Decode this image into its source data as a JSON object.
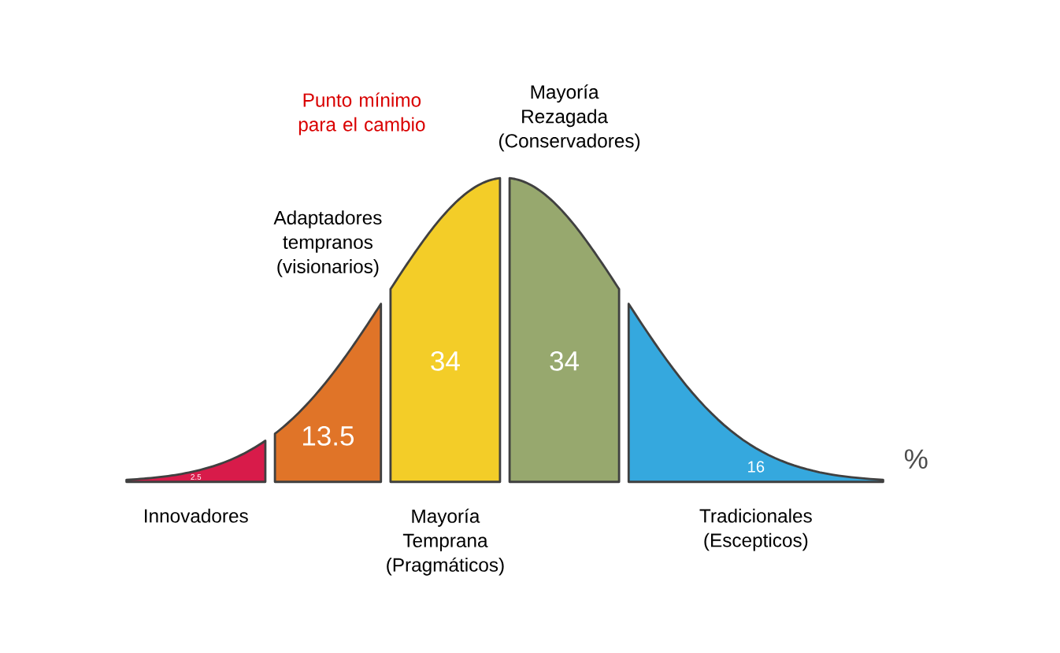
{
  "chart_data": {
    "type": "other",
    "categories": [
      "Innovadores",
      "Adaptadores tempranos (visionarios)",
      "Mayoría Temprana (Pragmáticos)",
      "Mayoría Rezagada (Conservadores)",
      "Tradicionales (Escepticos)"
    ],
    "values": [
      2.5,
      13.5,
      34,
      34,
      16
    ],
    "colors": [
      "#d81b4a",
      "#e07428",
      "#f3cd28",
      "#97a86e",
      "#35a8de"
    ],
    "data_labels": true,
    "annotations": [
      "Punto mínimo para el cambio",
      "%"
    ]
  }
}
